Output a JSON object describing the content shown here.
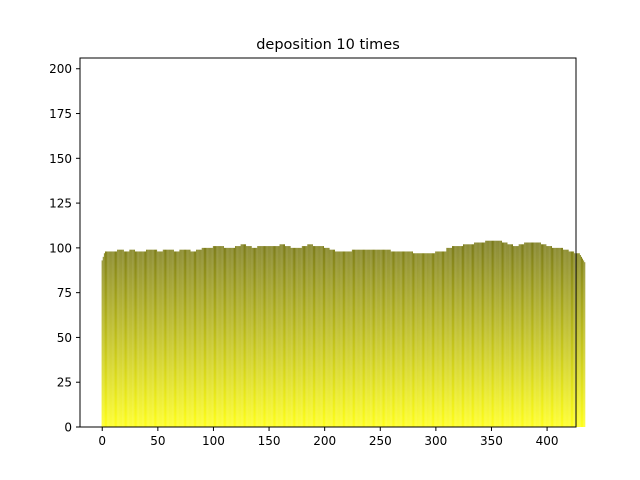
{
  "chart_data": {
    "type": "bar",
    "title": "deposition 10 times",
    "xlabel": "",
    "ylabel": "",
    "xlim": [
      -20,
      426
    ],
    "ylim": [
      0,
      206
    ],
    "xticks": [
      0,
      50,
      100,
      150,
      200,
      250,
      300,
      350,
      400
    ],
    "yticks": [
      0,
      25,
      50,
      75,
      100,
      125,
      150,
      175,
      200
    ],
    "grid": false,
    "bar_color_gradient": {
      "bottom": "#ffff00",
      "top": "#6b6b00"
    },
    "x_start": 0,
    "x_step": 1,
    "values": [
      93,
      95,
      97,
      98,
      98,
      98,
      98,
      98,
      98,
      98,
      98,
      98,
      98,
      98,
      99,
      99,
      99,
      99,
      99,
      99,
      98,
      98,
      98,
      98,
      98,
      99,
      99,
      99,
      99,
      99,
      98,
      98,
      98,
      98,
      98,
      98,
      98,
      98,
      98,
      98,
      99,
      99,
      99,
      99,
      99,
      99,
      99,
      99,
      99,
      99,
      98,
      98,
      98,
      98,
      98,
      99,
      99,
      99,
      99,
      99,
      99,
      99,
      99,
      99,
      99,
      98,
      98,
      98,
      98,
      98,
      99,
      99,
      99,
      99,
      99,
      99,
      99,
      99,
      99,
      99,
      98,
      98,
      98,
      98,
      98,
      99,
      99,
      99,
      99,
      99,
      100,
      100,
      100,
      100,
      100,
      100,
      100,
      100,
      100,
      100,
      101,
      101,
      101,
      101,
      101,
      101,
      101,
      101,
      101,
      101,
      100,
      100,
      100,
      100,
      100,
      100,
      100,
      100,
      100,
      100,
      101,
      101,
      101,
      101,
      101,
      102,
      102,
      102,
      102,
      102,
      101,
      101,
      101,
      101,
      101,
      100,
      100,
      100,
      100,
      100,
      101,
      101,
      101,
      101,
      101,
      101,
      101,
      101,
      101,
      101,
      101,
      101,
      101,
      101,
      101,
      101,
      101,
      101,
      101,
      101,
      102,
      102,
      102,
      102,
      102,
      101,
      101,
      101,
      101,
      101,
      100,
      100,
      100,
      100,
      100,
      100,
      100,
      100,
      100,
      100,
      101,
      101,
      101,
      101,
      101,
      102,
      102,
      102,
      102,
      102,
      101,
      101,
      101,
      101,
      101,
      101,
      101,
      101,
      101,
      101,
      100,
      100,
      100,
      100,
      100,
      99,
      99,
      99,
      99,
      99,
      98,
      98,
      98,
      98,
      98,
      98,
      98,
      98,
      98,
      98,
      98,
      98,
      98,
      98,
      98,
      99,
      99,
      99,
      99,
      99,
      99,
      99,
      99,
      99,
      99,
      99,
      99,
      99,
      99,
      99,
      99,
      99,
      99,
      99,
      99,
      99,
      99,
      99,
      99,
      99,
      99,
      99,
      99,
      99,
      99,
      99,
      99,
      99,
      99,
      99,
      98,
      98,
      98,
      98,
      98,
      98,
      98,
      98,
      98,
      98,
      98,
      98,
      98,
      98,
      98,
      98,
      98,
      98,
      98,
      98,
      97,
      97,
      97,
      97,
      97,
      97,
      97,
      97,
      97,
      97,
      97,
      97,
      97,
      97,
      97,
      97,
      97,
      97,
      97,
      97,
      98,
      98,
      98,
      98,
      98,
      98,
      98,
      98,
      98,
      98,
      100,
      100,
      100,
      100,
      100,
      101,
      101,
      101,
      101,
      101,
      101,
      101,
      101,
      101,
      101,
      102,
      102,
      102,
      102,
      102,
      102,
      102,
      102,
      102,
      102,
      103,
      103,
      103,
      103,
      103,
      103,
      103,
      103,
      103,
      103,
      104,
      104,
      104,
      104,
      104,
      104,
      104,
      104,
      104,
      104,
      104,
      104,
      104,
      104,
      104,
      103,
      103,
      103,
      103,
      103,
      102,
      102,
      102,
      102,
      102,
      101,
      101,
      101,
      101,
      101,
      102,
      102,
      102,
      102,
      102,
      103,
      103,
      103,
      103,
      103,
      103,
      103,
      103,
      103,
      103,
      103,
      103,
      103,
      103,
      103,
      102,
      102,
      102,
      102,
      102,
      101,
      101,
      101,
      101,
      101,
      100,
      100,
      100,
      100,
      100,
      100,
      100,
      100,
      100,
      100,
      99,
      99,
      99,
      99,
      99,
      98,
      98,
      98,
      98,
      98,
      97,
      97,
      97,
      97,
      97,
      96,
      95,
      94,
      93,
      92
    ]
  }
}
